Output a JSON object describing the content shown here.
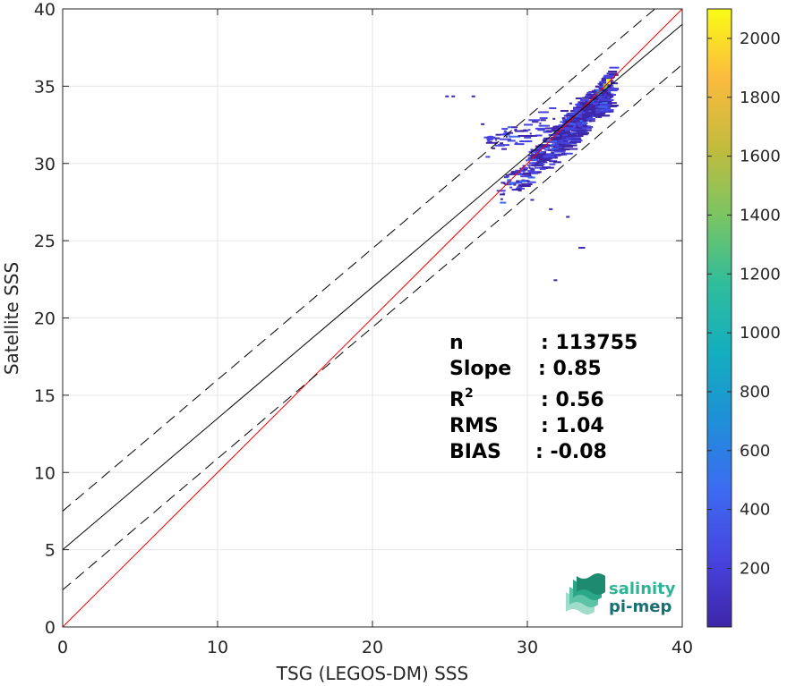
{
  "chart_data": {
    "type": "heatmap",
    "title": "",
    "xlabel": "TSG (LEGOS-DM) SSS",
    "ylabel": "Satellite SSS",
    "xlim": [
      0,
      40
    ],
    "ylim": [
      0,
      40
    ],
    "xticks": [
      0,
      10,
      20,
      30,
      40
    ],
    "yticks": [
      0,
      5,
      10,
      15,
      20,
      25,
      30,
      35,
      40
    ],
    "grid": true,
    "colorbar": {
      "min": 1,
      "max": 2100,
      "ticks": [
        200,
        400,
        600,
        800,
        1000,
        1200,
        1400,
        1600,
        1800,
        2000
      ],
      "colormap": [
        "#3e26a8",
        "#4744e0",
        "#3c6bf2",
        "#1f8fd8",
        "#13aebf",
        "#30bd9b",
        "#7bc562",
        "#c4bb3c",
        "#fcbb3e",
        "#f9fb15"
      ]
    },
    "lines": [
      {
        "name": "identity",
        "slope": 1.0,
        "intercept": 0.0,
        "color": "#ff0000",
        "style": "solid"
      },
      {
        "name": "fit",
        "slope": 0.85,
        "intercept": 5.0,
        "color": "#000000",
        "style": "solid"
      },
      {
        "name": "fit-upper",
        "slope": 0.85,
        "intercept": 7.5,
        "color": "#000000",
        "style": "dashed"
      },
      {
        "name": "fit-lower",
        "slope": 0.85,
        "intercept": 2.4,
        "color": "#000000",
        "style": "dashed"
      }
    ],
    "density_clusters": [
      {
        "x": [
          31.5,
          35.0
        ],
        "y": [
          31.5,
          35.0
        ],
        "count": 300
      },
      {
        "x": [
          30.0,
          35.3
        ],
        "y": [
          30.0,
          34.5
        ],
        "count": 260
      },
      {
        "x": [
          28.0,
          33.0
        ],
        "y": [
          28.0,
          32.0
        ],
        "count": 120
      },
      {
        "x": [
          27.0,
          34.0
        ],
        "y": [
          31.0,
          34.0
        ],
        "count": 90
      },
      {
        "x": [
          34.3,
          35.3
        ],
        "y": [
          34.0,
          35.6
        ],
        "count": 40
      }
    ],
    "sparse_points": [
      {
        "x": 24.7,
        "y": 34.4
      },
      {
        "x": 25.1,
        "y": 34.4
      },
      {
        "x": 26.4,
        "y": 34.4
      },
      {
        "x": 27.0,
        "y": 32.6
      },
      {
        "x": 28.6,
        "y": 29.3
      },
      {
        "x": 32.5,
        "y": 26.6
      },
      {
        "x": 33.3,
        "y": 24.6
      },
      {
        "x": 33.5,
        "y": 24.6
      },
      {
        "x": 31.7,
        "y": 22.5
      },
      {
        "x": 30.2,
        "y": 27.7
      },
      {
        "x": 29.4,
        "y": 28.3
      },
      {
        "x": 31.4,
        "y": 27.1
      }
    ],
    "hot_spots": [
      {
        "x": 35.2,
        "y": 35.3,
        "count": 2100
      },
      {
        "x": 35.0,
        "y": 35.0,
        "count": 1300
      },
      {
        "x": 28.8,
        "y": 28.8,
        "count": 450
      },
      {
        "x": 34.6,
        "y": 34.6,
        "count": 700
      }
    ]
  },
  "stats": [
    {
      "key": "n",
      "value": ": 113755"
    },
    {
      "key": "Slope",
      "value": ": 0.85"
    },
    {
      "key": "R",
      "sup": "2",
      "value": ": 0.56"
    },
    {
      "key": "RMS",
      "value": ": 1.04"
    },
    {
      "key": "BIAS",
      "value": ": -0.08"
    }
  ],
  "logo": {
    "line1": "salinity",
    "line2": "pi-mep"
  }
}
